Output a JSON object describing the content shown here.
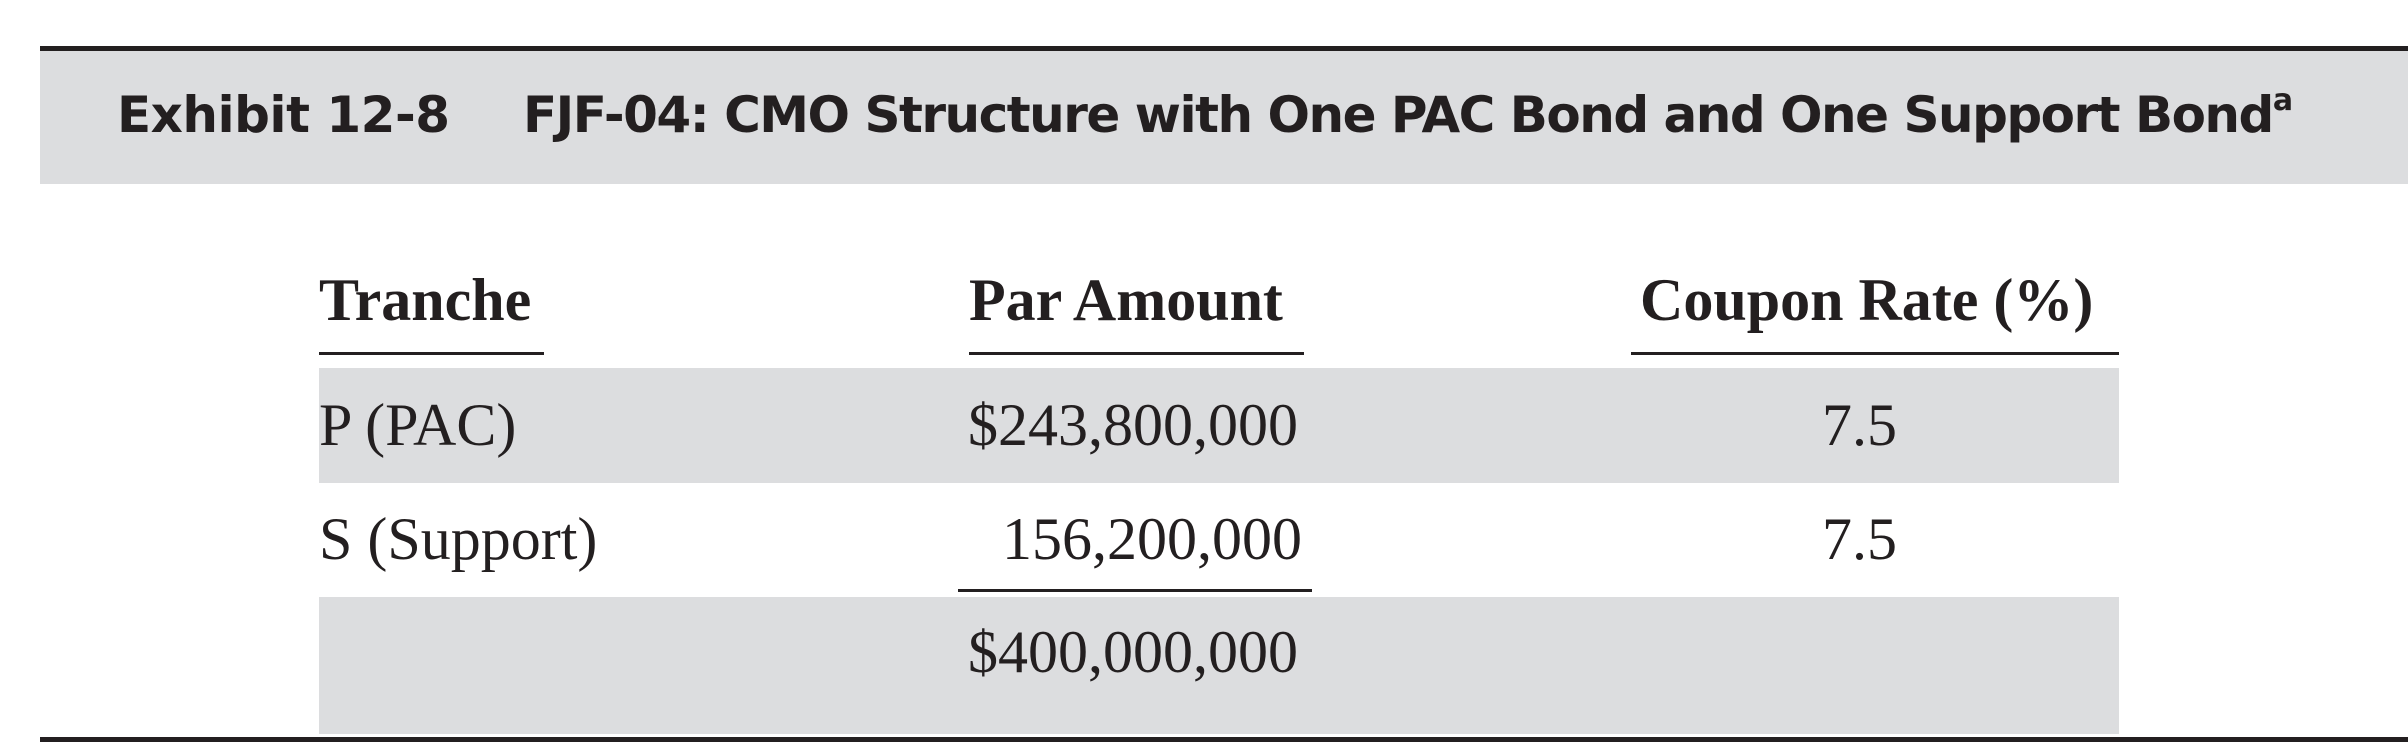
{
  "exhibit": {
    "label": "Exhibit 12-8",
    "title": "FJF-04: CMO Structure with One PAC Bond and One Support Bond",
    "title_footnote_marker": "a"
  },
  "table": {
    "headers": {
      "tranche": "Tranche",
      "par_amount": "Par Amount",
      "coupon_rate": "Coupon Rate (%)"
    },
    "rows": [
      {
        "tranche": "P (PAC)",
        "par_amount": "$243,800,000",
        "coupon_rate": "7.5"
      },
      {
        "tranche": "S (Support)",
        "par_amount": "156,200,000",
        "coupon_rate": "7.5"
      }
    ],
    "total": {
      "par_amount": "$400,000,000"
    }
  },
  "colors": {
    "band_gray": "#dcdddf",
    "text": "#231f20",
    "rule": "#231f20"
  }
}
